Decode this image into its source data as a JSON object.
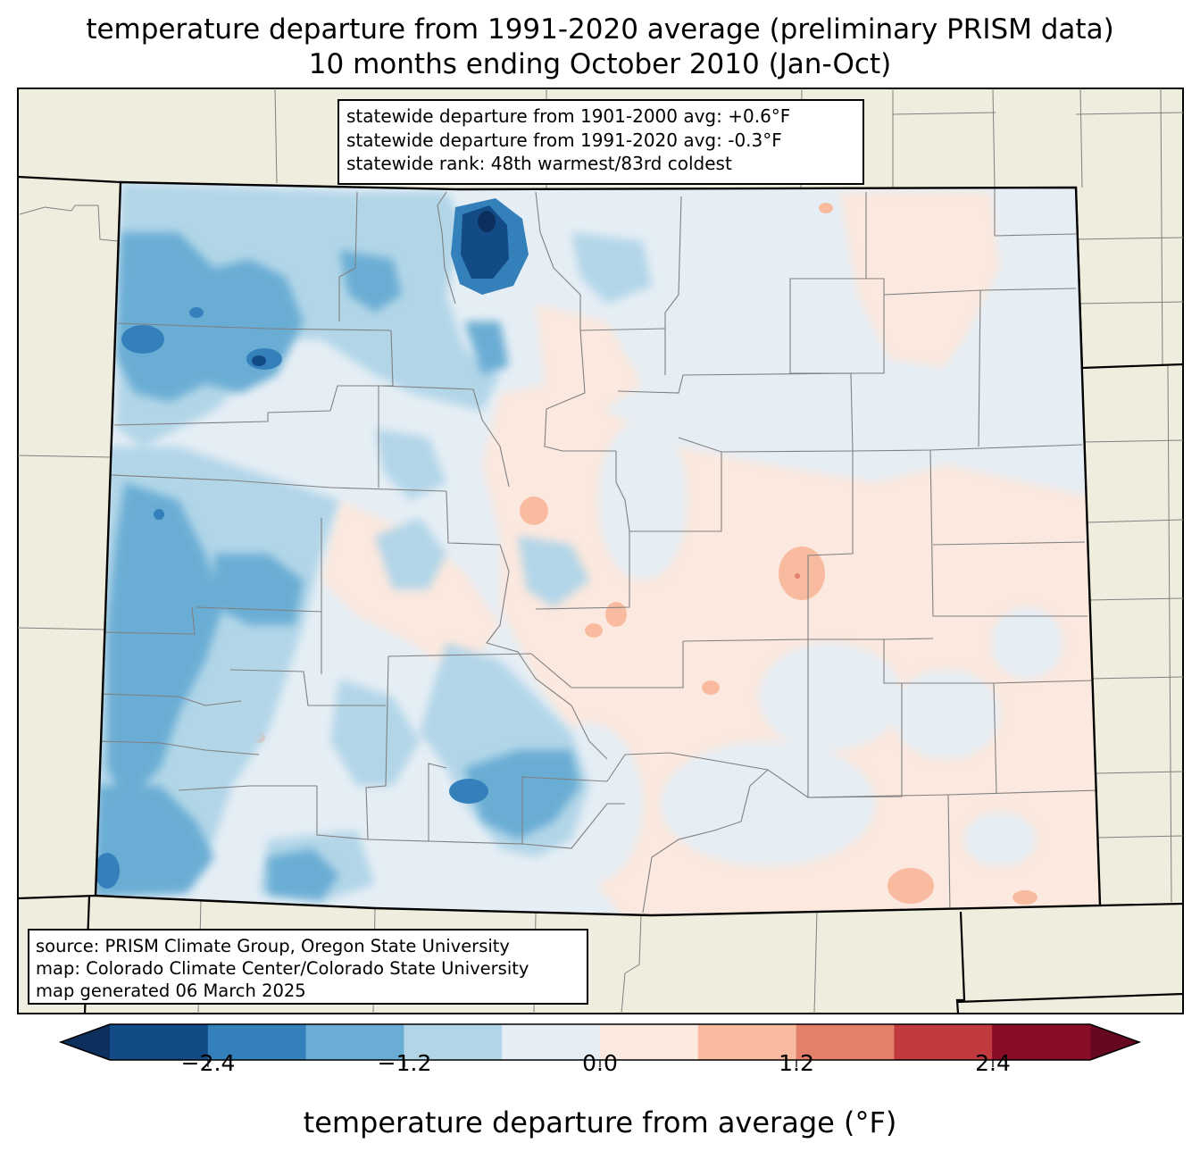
{
  "title": {
    "line1": "temperature departure from 1991-2020 average (preliminary PRISM data)",
    "line2": "10 months ending October 2010 (Jan-Oct)"
  },
  "stats": {
    "line1": "statewide departure from 1901-2000 avg: +0.6°F",
    "line2": "statewide departure from 1991-2020 avg: -0.3°F",
    "line3": "statewide rank: 48th warmest/83rd coldest"
  },
  "source": {
    "line1": "source: PRISM Climate Group, Oregon State University",
    "line2": "map: Colorado Climate Center/Colorado State University",
    "line3": "map generated 06 March 2025"
  },
  "colorbar": {
    "label": "temperature departure from average (°F)",
    "ticks": [
      "−2.4",
      "−1.2",
      "0.0",
      "1.2",
      "2.4"
    ],
    "bins": [
      {
        "from": -3.0,
        "to": -2.4,
        "color": "#134b86"
      },
      {
        "from": -2.4,
        "to": -1.8,
        "color": "#3480ba"
      },
      {
        "from": -1.8,
        "to": -1.2,
        "color": "#6aadd4"
      },
      {
        "from": -1.2,
        "to": -0.6,
        "color": "#b2d6e8"
      },
      {
        "from": -0.6,
        "to": 0.0,
        "color": "#e5eef5"
      },
      {
        "from": 0.0,
        "to": 0.6,
        "color": "#fbe8de"
      },
      {
        "from": 0.6,
        "to": 1.2,
        "color": "#f8bba0"
      },
      {
        "from": 1.2,
        "to": 1.8,
        "color": "#e2806a"
      },
      {
        "from": 1.8,
        "to": 2.4,
        "color": "#c03a3e"
      },
      {
        "from": 2.4,
        "to": 3.0,
        "color": "#880c26"
      }
    ],
    "under_color": "#0d2f5e",
    "over_color": "#650820"
  },
  "map_colors": {
    "land": "#efedde",
    "county_line": "#808080",
    "state_line": "#000000"
  }
}
